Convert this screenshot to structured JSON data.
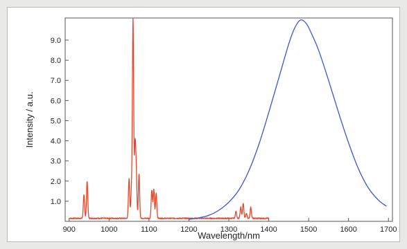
{
  "chart_data": {
    "type": "line",
    "title": "",
    "xlabel": "Wavelength/nm",
    "ylabel": "Intensity / a.u.",
    "xlim": [
      890,
      1710
    ],
    "ylim": [
      0,
      10.1
    ],
    "grid": false,
    "legend": "none",
    "x_ticks": [
      "900",
      "1000",
      "1100",
      "1200",
      "1300",
      "1400",
      "1500",
      "1600",
      "1700"
    ],
    "y_ticks": [
      "1.0",
      "2.0",
      "3.0",
      "4.0",
      "5.0",
      "6.0",
      "7.0",
      "8.0",
      "9.0"
    ],
    "series": [
      {
        "color": "#e8462a",
        "baseline": 0.15,
        "x_range": [
          900,
          1400
        ],
        "peaks": [
          {
            "x": 937,
            "y": 1.3
          },
          {
            "x": 945,
            "y": 2.0
          },
          {
            "x": 1050,
            "y": 2.1
          },
          {
            "x": 1056,
            "y": 1.5
          },
          {
            "x": 1060,
            "y": 10.0
          },
          {
            "x": 1065,
            "y": 3.6
          },
          {
            "x": 1068,
            "y": 2.4
          },
          {
            "x": 1075,
            "y": 2.35
          },
          {
            "x": 1107,
            "y": 1.55
          },
          {
            "x": 1112,
            "y": 1.6
          },
          {
            "x": 1118,
            "y": 1.4
          },
          {
            "x": 1318,
            "y": 0.5
          },
          {
            "x": 1330,
            "y": 0.7
          },
          {
            "x": 1336,
            "y": 0.9
          },
          {
            "x": 1344,
            "y": 0.4
          },
          {
            "x": 1355,
            "y": 0.7
          }
        ]
      },
      {
        "color": "#3a55d6",
        "x_range": [
          1200,
          1695
        ],
        "x": [
          1200,
          1225,
          1250,
          1275,
          1300,
          1325,
          1350,
          1375,
          1400,
          1425,
          1450,
          1465,
          1480,
          1495,
          1510,
          1525,
          1550,
          1575,
          1600,
          1625,
          1650,
          1675,
          1695
        ],
        "values": [
          0.1,
          0.17,
          0.3,
          0.55,
          0.95,
          1.55,
          2.5,
          3.8,
          5.4,
          7.1,
          8.8,
          9.6,
          10.0,
          9.8,
          9.2,
          8.5,
          7.0,
          5.4,
          3.9,
          2.6,
          1.65,
          1.05,
          0.75
        ]
      }
    ]
  }
}
